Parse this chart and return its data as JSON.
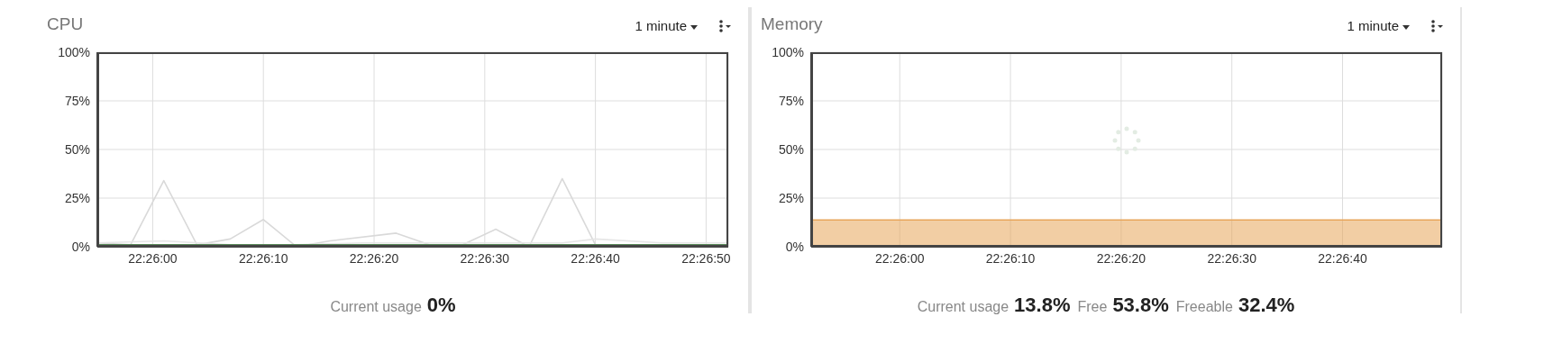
{
  "chart_data": [
    {
      "type": "line",
      "title": "CPU",
      "annotations": [
        "1 minute",
        "Current usage",
        "0%"
      ],
      "xlim": [
        22.431944,
        22.447778
      ],
      "xticks": [
        {
          "value": 22.433333,
          "label": "22:26:00"
        },
        {
          "value": 22.436111,
          "label": "22:26:10"
        },
        {
          "value": 22.438889,
          "label": "22:26:20"
        },
        {
          "value": 22.441667,
          "label": "22:26:30"
        },
        {
          "value": 22.444444,
          "label": "22:26:40"
        },
        {
          "value": 22.447222,
          "label": "22:26:50"
        }
      ],
      "ylim": [
        0,
        100
      ],
      "yticks": [
        {
          "value": 0,
          "label": "0%"
        },
        {
          "value": 25,
          "label": "25%"
        },
        {
          "value": 50,
          "label": "50%"
        },
        {
          "value": 75,
          "label": "75%"
        },
        {
          "value": 100,
          "label": "100%"
        }
      ],
      "grid": true,
      "legend": false,
      "marker": "none",
      "line_style": "solid",
      "series": [
        {
          "color": "#d9d9d9",
          "x": [
            22.431944,
            22.432778,
            22.433611,
            22.434444,
            22.435278,
            22.436111,
            22.436944,
            22.437778,
            22.439444,
            22.440278,
            22.441111,
            22.441944,
            22.442778,
            22.443611,
            22.444444,
            22.447778
          ],
          "values": [
            2,
            1,
            34,
            1,
            4,
            14,
            0,
            3,
            7,
            1,
            1,
            9,
            0,
            35,
            1,
            1
          ]
        },
        {
          "color": "#e6e6e6",
          "x": [
            22.431944,
            22.433611,
            22.435278,
            22.436944,
            22.438611,
            22.440278,
            22.441944,
            22.443611,
            22.444444,
            22.446111,
            22.447778
          ],
          "values": [
            2,
            3,
            1,
            1,
            2,
            2,
            2,
            2,
            4,
            2,
            2
          ]
        },
        {
          "color": "#5a8a5a",
          "x": [
            22.431944,
            22.447778
          ],
          "values": [
            1,
            1
          ]
        }
      ]
    },
    {
      "type": "area",
      "title": "Memory",
      "annotations": [
        "1 minute",
        "Current usage",
        "13.8%",
        "Free",
        "53.8%",
        "Freeable",
        "32.4%"
      ],
      "xlim": [
        22.431111,
        22.446944
      ],
      "xticks": [
        {
          "value": 22.433333,
          "label": "22:26:00"
        },
        {
          "value": 22.436111,
          "label": "22:26:10"
        },
        {
          "value": 22.438889,
          "label": "22:26:20"
        },
        {
          "value": 22.441667,
          "label": "22:26:30"
        },
        {
          "value": 22.444444,
          "label": "22:26:40"
        }
      ],
      "ylim": [
        0,
        100
      ],
      "yticks": [
        {
          "value": 0,
          "label": "0%"
        },
        {
          "value": 25,
          "label": "25%"
        },
        {
          "value": 50,
          "label": "50%"
        },
        {
          "value": 75,
          "label": "75%"
        },
        {
          "value": 100,
          "label": "100%"
        }
      ],
      "grid": true,
      "legend": false,
      "marker": "none",
      "line_style": "solid",
      "series": [
        {
          "color": "#e8a55a",
          "x": [
            22.431111,
            22.446944
          ],
          "values": [
            13.8,
            13.8
          ]
        }
      ]
    }
  ]
}
